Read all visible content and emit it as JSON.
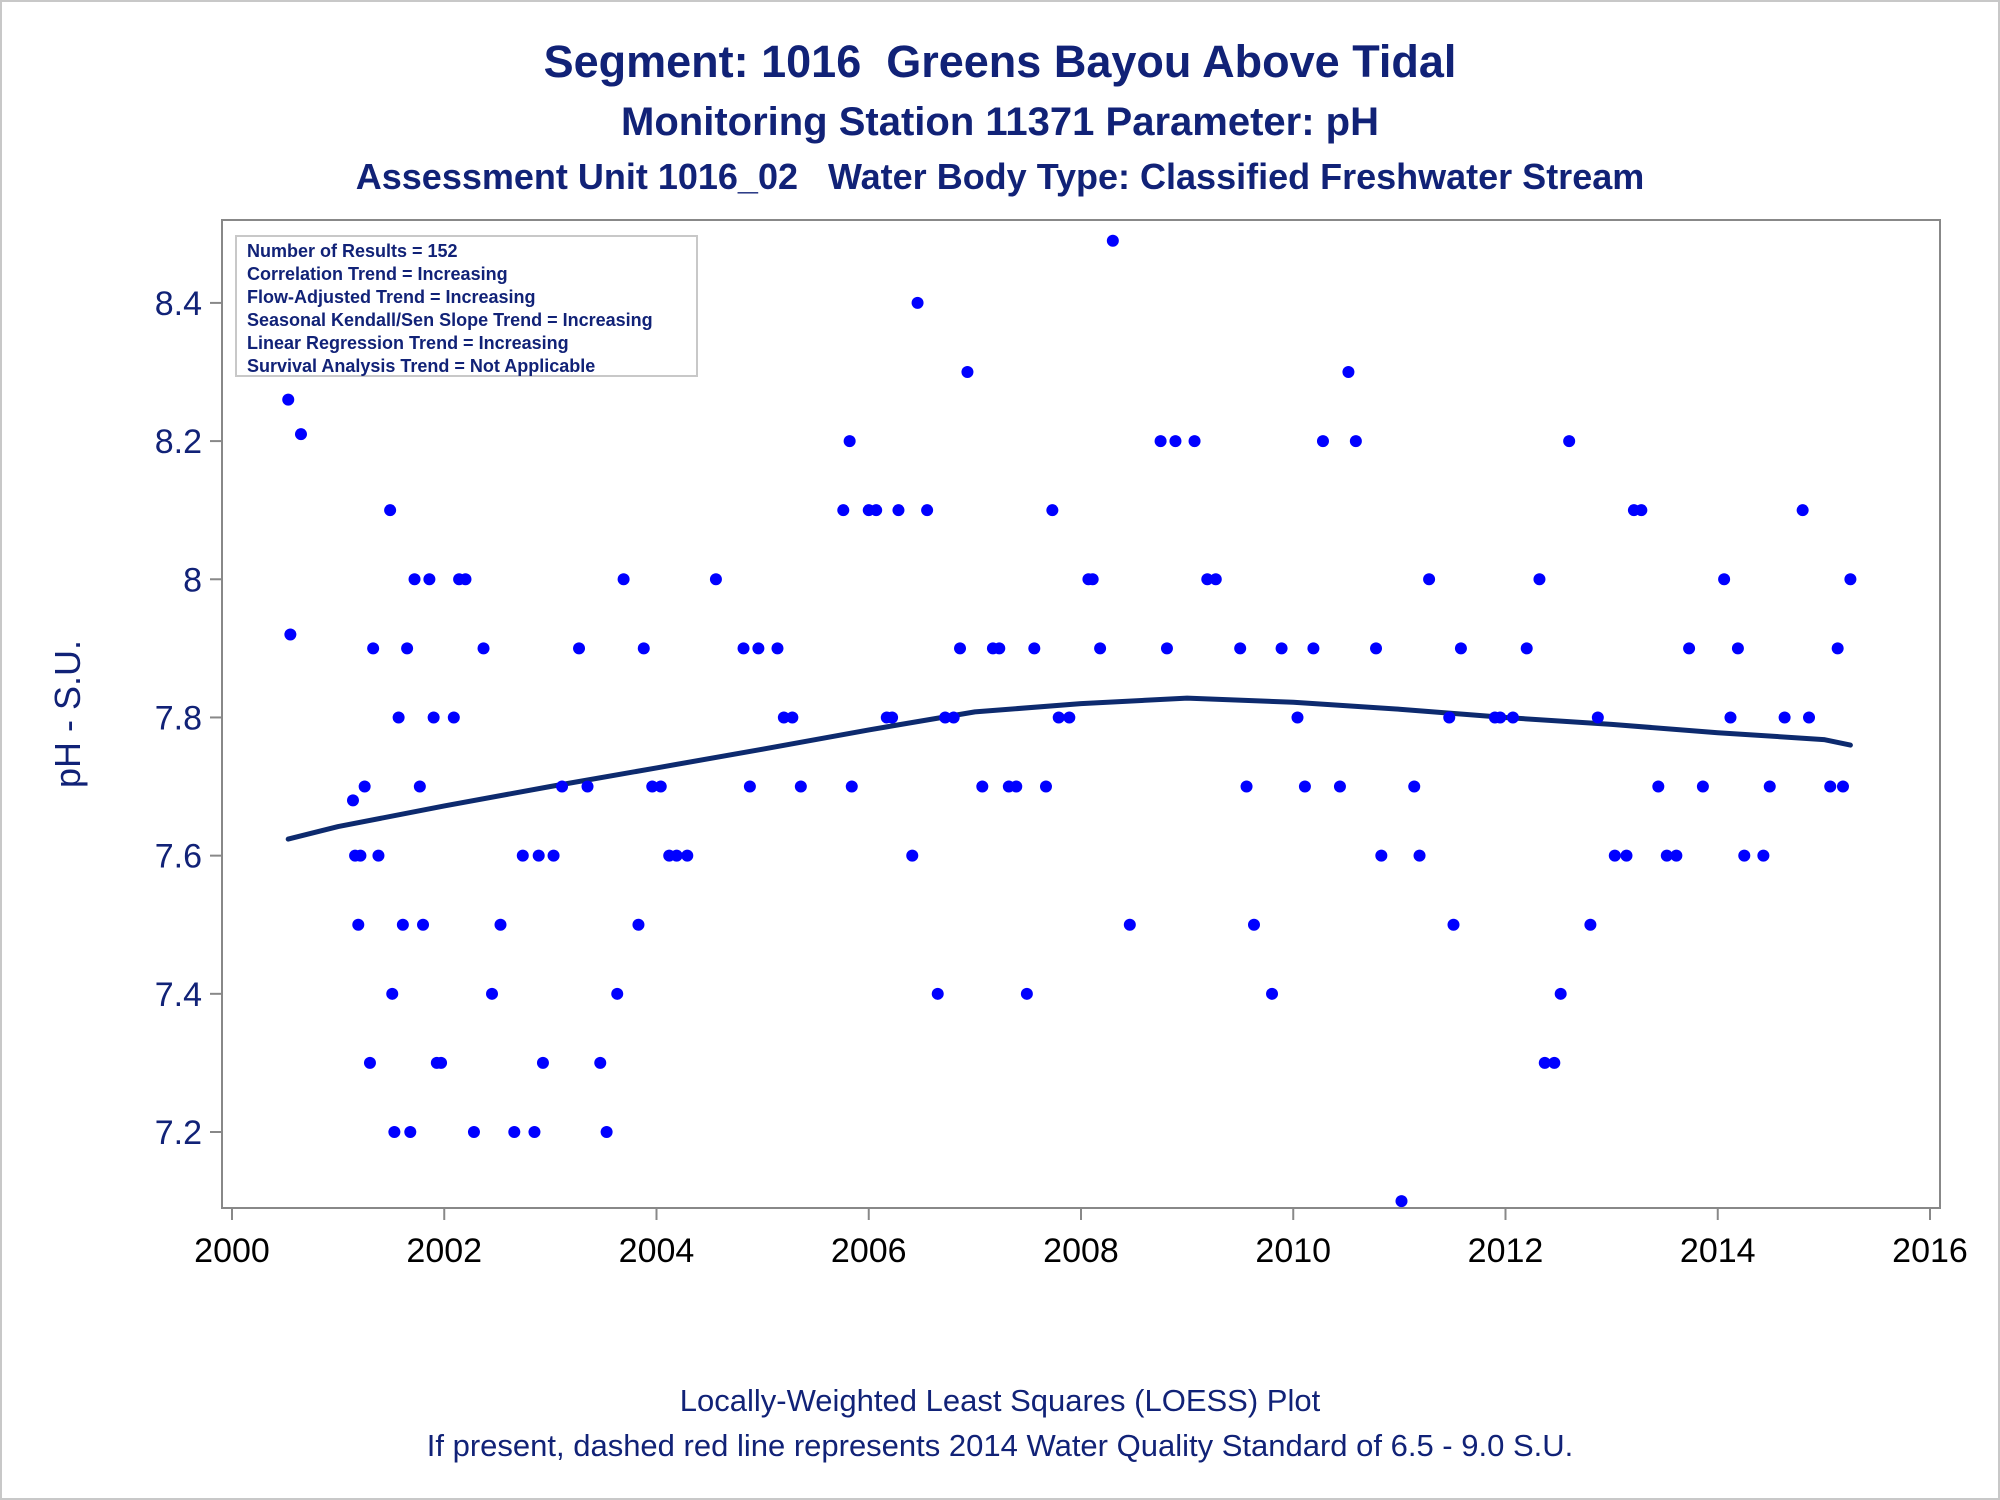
{
  "titles": {
    "line1": "Segment: 1016  Greens Bayou Above Tidal",
    "line2": "Monitoring Station 11371 Parameter: pH",
    "line3": "Assessment Unit 1016_02   Water Body Type: Classified Freshwater Stream"
  },
  "footer": {
    "line1": "Locally-Weighted Least Squares (LOESS) Plot",
    "line2": "If present, dashed red line represents 2014 Water Quality Standard of 6.5 - 9.0 S.U."
  },
  "colors": {
    "text": "#112277",
    "points": "#0000ff",
    "loess": "#0d2a6e",
    "frame": "#888888"
  },
  "chart_data": {
    "type": "scatter",
    "ylabel": "pH - S.U.",
    "xlabel": "",
    "xlim": [
      2000,
      2016
    ],
    "ylim": [
      7.09,
      8.52
    ],
    "x_ticks": [
      2000,
      2002,
      2004,
      2006,
      2008,
      2010,
      2012,
      2014,
      2016
    ],
    "y_ticks": [
      7.2,
      7.4,
      7.6,
      7.8,
      8.0,
      8.2,
      8.4
    ],
    "y_tick_labels": [
      "7.2",
      "7.4",
      "7.6",
      "7.8",
      "8",
      "8.2",
      "8.4"
    ],
    "grid": false,
    "inset_box": {
      "position": "top-left",
      "lines": [
        "Number of Results = 152",
        "Correlation Trend = Increasing",
        "Flow-Adjusted Trend = Increasing",
        "Seasonal Kendall/Sen Slope Trend = Increasing",
        "Linear Regression Trend = Increasing",
        "Survival Analysis Trend = Not Applicable"
      ]
    },
    "series": [
      {
        "type": "scatter",
        "points": [
          [
            2000.53,
            8.26
          ],
          [
            2000.55,
            7.92
          ],
          [
            2000.65,
            8.21
          ],
          [
            2001.14,
            7.68
          ],
          [
            2001.16,
            7.6
          ],
          [
            2001.19,
            7.5
          ],
          [
            2001.21,
            7.6
          ],
          [
            2001.25,
            7.7
          ],
          [
            2001.3,
            7.3
          ],
          [
            2001.33,
            7.9
          ],
          [
            2001.38,
            7.6
          ],
          [
            2001.49,
            8.1
          ],
          [
            2001.51,
            7.4
          ],
          [
            2001.53,
            7.2
          ],
          [
            2001.57,
            7.8
          ],
          [
            2001.61,
            7.5
          ],
          [
            2001.65,
            7.9
          ],
          [
            2001.68,
            7.2
          ],
          [
            2001.72,
            8.0
          ],
          [
            2001.77,
            7.7
          ],
          [
            2001.8,
            7.5
          ],
          [
            2001.86,
            8.0
          ],
          [
            2001.9,
            7.8
          ],
          [
            2001.93,
            7.3
          ],
          [
            2001.97,
            7.3
          ],
          [
            2002.09,
            7.8
          ],
          [
            2002.14,
            8.0
          ],
          [
            2002.2,
            8.0
          ],
          [
            2002.28,
            7.2
          ],
          [
            2002.37,
            7.9
          ],
          [
            2002.45,
            7.4
          ],
          [
            2002.53,
            7.5
          ],
          [
            2002.66,
            7.2
          ],
          [
            2002.74,
            7.6
          ],
          [
            2002.85,
            7.2
          ],
          [
            2002.89,
            7.6
          ],
          [
            2002.93,
            7.3
          ],
          [
            2003.03,
            7.6
          ],
          [
            2003.11,
            7.7
          ],
          [
            2003.27,
            7.9
          ],
          [
            2003.35,
            7.7
          ],
          [
            2003.47,
            7.3
          ],
          [
            2003.53,
            7.2
          ],
          [
            2003.63,
            7.4
          ],
          [
            2003.69,
            8.0
          ],
          [
            2003.83,
            7.5
          ],
          [
            2003.88,
            7.9
          ],
          [
            2003.96,
            7.7
          ],
          [
            2004.04,
            7.7
          ],
          [
            2004.12,
            7.6
          ],
          [
            2004.19,
            7.6
          ],
          [
            2004.29,
            7.6
          ],
          [
            2004.56,
            8.0
          ],
          [
            2004.82,
            7.9
          ],
          [
            2004.88,
            7.7
          ],
          [
            2004.96,
            7.9
          ],
          [
            2005.14,
            7.9
          ],
          [
            2005.2,
            7.8
          ],
          [
            2005.28,
            7.8
          ],
          [
            2005.36,
            7.7
          ],
          [
            2005.76,
            8.1
          ],
          [
            2005.82,
            8.2
          ],
          [
            2005.84,
            7.7
          ],
          [
            2006.0,
            8.1
          ],
          [
            2006.07,
            8.1
          ],
          [
            2006.17,
            7.8
          ],
          [
            2006.22,
            7.8
          ],
          [
            2006.28,
            8.1
          ],
          [
            2006.41,
            7.6
          ],
          [
            2006.46,
            8.4
          ],
          [
            2006.55,
            8.1
          ],
          [
            2006.65,
            7.4
          ],
          [
            2006.72,
            7.8
          ],
          [
            2006.8,
            7.8
          ],
          [
            2006.86,
            7.9
          ],
          [
            2006.93,
            8.3
          ],
          [
            2007.07,
            7.7
          ],
          [
            2007.17,
            7.9
          ],
          [
            2007.23,
            7.9
          ],
          [
            2007.32,
            7.7
          ],
          [
            2007.39,
            7.7
          ],
          [
            2007.49,
            7.4
          ],
          [
            2007.56,
            7.9
          ],
          [
            2007.67,
            7.7
          ],
          [
            2007.73,
            8.1
          ],
          [
            2007.79,
            7.8
          ],
          [
            2007.89,
            7.8
          ],
          [
            2008.07,
            8.0
          ],
          [
            2008.11,
            8.0
          ],
          [
            2008.18,
            7.9
          ],
          [
            2008.3,
            8.49
          ],
          [
            2008.46,
            7.5
          ],
          [
            2008.75,
            8.2
          ],
          [
            2008.81,
            7.9
          ],
          [
            2008.89,
            8.2
          ],
          [
            2009.07,
            8.2
          ],
          [
            2009.19,
            8.0
          ],
          [
            2009.27,
            8.0
          ],
          [
            2009.5,
            7.9
          ],
          [
            2009.56,
            7.7
          ],
          [
            2009.63,
            7.5
          ],
          [
            2009.8,
            7.4
          ],
          [
            2009.89,
            7.9
          ],
          [
            2010.04,
            7.8
          ],
          [
            2010.11,
            7.7
          ],
          [
            2010.19,
            7.9
          ],
          [
            2010.28,
            8.2
          ],
          [
            2010.44,
            7.7
          ],
          [
            2010.52,
            8.3
          ],
          [
            2010.59,
            8.2
          ],
          [
            2010.78,
            7.9
          ],
          [
            2010.83,
            7.6
          ],
          [
            2011.02,
            7.1
          ],
          [
            2011.14,
            7.7
          ],
          [
            2011.19,
            7.6
          ],
          [
            2011.28,
            8.0
          ],
          [
            2011.47,
            7.8
          ],
          [
            2011.51,
            7.5
          ],
          [
            2011.58,
            7.9
          ],
          [
            2011.9,
            7.8
          ],
          [
            2011.95,
            7.8
          ],
          [
            2012.07,
            7.8
          ],
          [
            2012.2,
            7.9
          ],
          [
            2012.32,
            8.0
          ],
          [
            2012.37,
            7.3
          ],
          [
            2012.46,
            7.3
          ],
          [
            2012.52,
            7.4
          ],
          [
            2012.6,
            8.2
          ],
          [
            2012.8,
            7.5
          ],
          [
            2012.87,
            7.8
          ],
          [
            2013.03,
            7.6
          ],
          [
            2013.14,
            7.6
          ],
          [
            2013.21,
            8.1
          ],
          [
            2013.28,
            8.1
          ],
          [
            2013.44,
            7.7
          ],
          [
            2013.52,
            7.6
          ],
          [
            2013.61,
            7.6
          ],
          [
            2013.73,
            7.9
          ],
          [
            2013.86,
            7.7
          ],
          [
            2014.06,
            8.0
          ],
          [
            2014.12,
            7.8
          ],
          [
            2014.19,
            7.9
          ],
          [
            2014.25,
            7.6
          ],
          [
            2014.43,
            7.6
          ],
          [
            2014.49,
            7.7
          ],
          [
            2014.63,
            7.8
          ],
          [
            2014.8,
            8.1
          ],
          [
            2014.86,
            7.8
          ],
          [
            2015.06,
            7.7
          ],
          [
            2015.13,
            7.9
          ],
          [
            2015.18,
            7.7
          ],
          [
            2015.25,
            8.0
          ]
        ]
      },
      {
        "type": "line",
        "points": [
          [
            2000.53,
            7.624
          ],
          [
            2001.0,
            7.642
          ],
          [
            2002.0,
            7.672
          ],
          [
            2003.0,
            7.7
          ],
          [
            2004.0,
            7.727
          ],
          [
            2005.0,
            7.754
          ],
          [
            2006.0,
            7.782
          ],
          [
            2007.0,
            7.808
          ],
          [
            2008.0,
            7.82
          ],
          [
            2009.0,
            7.828
          ],
          [
            2010.0,
            7.822
          ],
          [
            2011.0,
            7.812
          ],
          [
            2012.0,
            7.8
          ],
          [
            2013.0,
            7.79
          ],
          [
            2014.0,
            7.778
          ],
          [
            2015.0,
            7.768
          ],
          [
            2015.25,
            7.76
          ]
        ]
      }
    ]
  }
}
